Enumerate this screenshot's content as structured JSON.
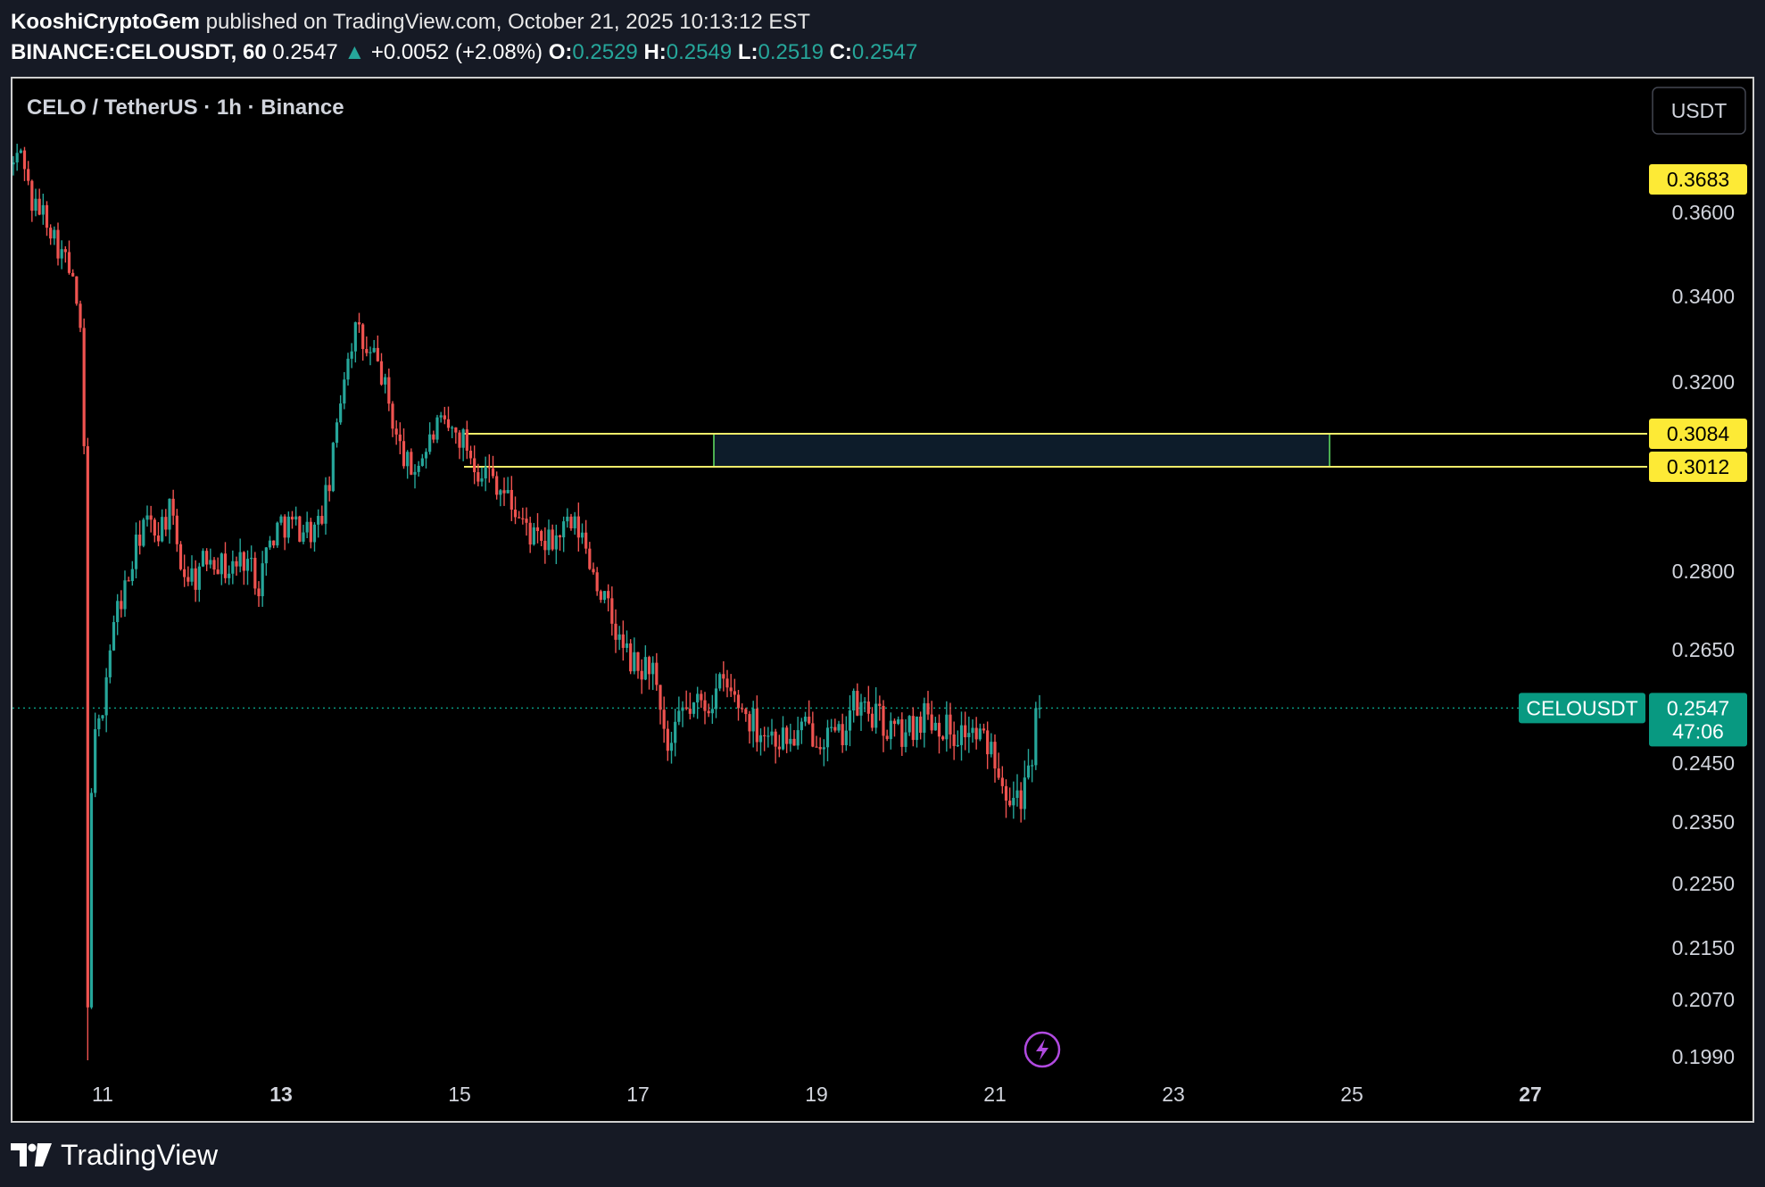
{
  "header": {
    "author": "KooshiCryptoGem",
    "published_text": " published on TradingView.com, October 21, 2025 10:13:12 EST",
    "symbol_line": "BINANCE:CELOUSDT, 60",
    "last": "0.2547",
    "change_arrow": "▲",
    "change": "+0.0052 (+2.08%)",
    "open_label": "O:",
    "open": "0.2529",
    "high_label": "H:",
    "high": "0.2549",
    "low_label": "L:",
    "low": "0.2519",
    "close_label": "C:",
    "close": "0.2547"
  },
  "chart_data": {
    "type": "candlestick",
    "title": "CELO / TetherUS · 1h · Binance",
    "currency_button": "USDT",
    "x_ticks": [
      {
        "label": "11",
        "day": 11,
        "bold": false
      },
      {
        "label": "13",
        "day": 13,
        "bold": true
      },
      {
        "label": "15",
        "day": 15,
        "bold": false
      },
      {
        "label": "17",
        "day": 17,
        "bold": false
      },
      {
        "label": "19",
        "day": 19,
        "bold": false
      },
      {
        "label": "21",
        "day": 21,
        "bold": false
      },
      {
        "label": "23",
        "day": 23,
        "bold": false
      },
      {
        "label": "25",
        "day": 25,
        "bold": false
      },
      {
        "label": "27",
        "day": 27,
        "bold": true
      }
    ],
    "y_ticks": [
      "0.3600",
      "0.3400",
      "0.3200",
      "0.2800",
      "0.2650",
      "0.2450",
      "0.2350",
      "0.2250",
      "0.2150",
      "0.2070",
      "0.1990"
    ],
    "price_tags": [
      {
        "label": "0.3683",
        "kind": "yellow"
      },
      {
        "label": "0.3084",
        "kind": "yellow"
      },
      {
        "label": "0.3012",
        "kind": "yellow"
      }
    ],
    "current": {
      "symbol": "CELOUSDT",
      "price": "0.2547",
      "countdown": "47:06"
    },
    "zone": {
      "low": 0.3012,
      "high": 0.3084,
      "start_day": 17.85,
      "end_day": 24.75
    },
    "levels": [
      0.3084,
      0.3012
    ],
    "path_points": [
      [
        10.0,
        0.372
      ],
      [
        10.1,
        0.376
      ],
      [
        10.2,
        0.362
      ],
      [
        10.35,
        0.36
      ],
      [
        10.5,
        0.352
      ],
      [
        10.6,
        0.348
      ],
      [
        10.7,
        0.34
      ],
      [
        10.75,
        0.33
      ],
      [
        10.8,
        0.3
      ],
      [
        10.83,
        0.201
      ],
      [
        10.88,
        0.247
      ],
      [
        10.95,
        0.25
      ],
      [
        11.05,
        0.262
      ],
      [
        11.15,
        0.272
      ],
      [
        11.3,
        0.279
      ],
      [
        11.45,
        0.29
      ],
      [
        11.6,
        0.288
      ],
      [
        11.75,
        0.292
      ],
      [
        11.9,
        0.28
      ],
      [
        12.05,
        0.279
      ],
      [
        12.2,
        0.284
      ],
      [
        12.4,
        0.28
      ],
      [
        12.6,
        0.283
      ],
      [
        12.75,
        0.278
      ],
      [
        12.85,
        0.285
      ],
      [
        13.0,
        0.29
      ],
      [
        13.2,
        0.289
      ],
      [
        13.4,
        0.288
      ],
      [
        13.55,
        0.298
      ],
      [
        13.65,
        0.315
      ],
      [
        13.75,
        0.327
      ],
      [
        13.85,
        0.333
      ],
      [
        13.95,
        0.326
      ],
      [
        14.05,
        0.326
      ],
      [
        14.15,
        0.32
      ],
      [
        14.3,
        0.307
      ],
      [
        14.45,
        0.3
      ],
      [
        14.6,
        0.304
      ],
      [
        14.75,
        0.31
      ],
      [
        14.9,
        0.309
      ],
      [
        15.05,
        0.307
      ],
      [
        15.2,
        0.301
      ],
      [
        15.35,
        0.3
      ],
      [
        15.5,
        0.296
      ],
      [
        15.7,
        0.29
      ],
      [
        15.9,
        0.285
      ],
      [
        16.05,
        0.286
      ],
      [
        16.2,
        0.289
      ],
      [
        16.35,
        0.288
      ],
      [
        16.5,
        0.28
      ],
      [
        16.65,
        0.273
      ],
      [
        16.8,
        0.266
      ],
      [
        17.0,
        0.261
      ],
      [
        17.15,
        0.263
      ],
      [
        17.25,
        0.252
      ],
      [
        17.35,
        0.246
      ],
      [
        17.5,
        0.254
      ],
      [
        17.65,
        0.255
      ],
      [
        17.8,
        0.256
      ],
      [
        17.95,
        0.259
      ],
      [
        18.1,
        0.256
      ],
      [
        18.3,
        0.252
      ],
      [
        18.5,
        0.25
      ],
      [
        18.7,
        0.249
      ],
      [
        18.9,
        0.251
      ],
      [
        19.1,
        0.25
      ],
      [
        19.25,
        0.249
      ],
      [
        19.4,
        0.255
      ],
      [
        19.6,
        0.254
      ],
      [
        19.8,
        0.251
      ],
      [
        20.0,
        0.25
      ],
      [
        20.2,
        0.254
      ],
      [
        20.4,
        0.252
      ],
      [
        20.55,
        0.25
      ],
      [
        20.7,
        0.251
      ],
      [
        20.85,
        0.249
      ],
      [
        21.0,
        0.247
      ],
      [
        21.1,
        0.242
      ],
      [
        21.2,
        0.24
      ],
      [
        21.3,
        0.24
      ],
      [
        21.42,
        0.243
      ],
      [
        21.5,
        0.2547
      ]
    ]
  },
  "footer": {
    "brand": "TradingView"
  },
  "colors": {
    "up": "#26a69a",
    "down": "#ef5350",
    "zone_fill": "#0d1c2a",
    "zone_border": "#4caf50",
    "level_line": "#f0ec6a",
    "tag_yellow": "#fdea36",
    "current_green": "#089981"
  }
}
